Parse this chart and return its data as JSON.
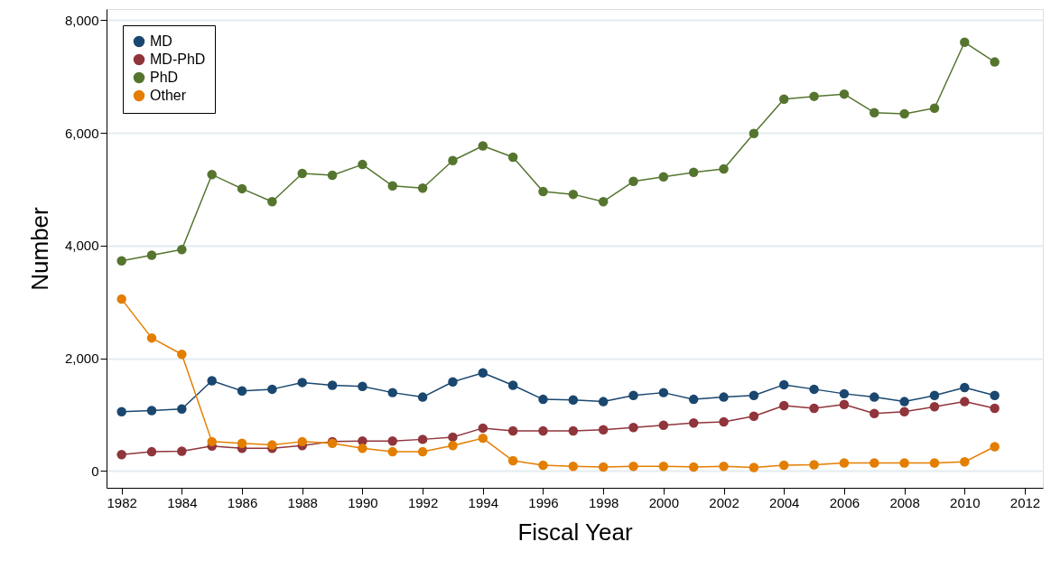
{
  "chart_data": {
    "type": "line",
    "xlabel": "Fiscal Year",
    "ylabel": "Number",
    "x": [
      1982,
      1983,
      1984,
      1985,
      1986,
      1987,
      1988,
      1989,
      1990,
      1991,
      1992,
      1993,
      1994,
      1995,
      1996,
      1997,
      1998,
      1999,
      2000,
      2001,
      2002,
      2003,
      2004,
      2005,
      2006,
      2007,
      2008,
      2009,
      2010,
      2011
    ],
    "series": [
      {
        "name": "MD",
        "color": "#1a476f",
        "values": [
          1050,
          1070,
          1100,
          1600,
          1420,
          1450,
          1570,
          1520,
          1500,
          1390,
          1310,
          1580,
          1740,
          1520,
          1270,
          1260,
          1230,
          1340,
          1390,
          1270,
          1310,
          1340,
          1530,
          1450,
          1370,
          1310,
          1230,
          1340,
          1480,
          1340
        ]
      },
      {
        "name": "MD-PhD",
        "color": "#90353b",
        "values": [
          290,
          340,
          350,
          440,
          400,
          400,
          450,
          520,
          530,
          530,
          560,
          600,
          760,
          710,
          710,
          710,
          730,
          770,
          810,
          850,
          870,
          970,
          1160,
          1110,
          1180,
          1020,
          1050,
          1140,
          1230,
          1110
        ]
      },
      {
        "name": "PhD",
        "color": "#55752f",
        "values": [
          3730,
          3830,
          3930,
          5260,
          5010,
          4780,
          5280,
          5250,
          5440,
          5060,
          5020,
          5510,
          5770,
          5570,
          4960,
          4910,
          4780,
          5140,
          5220,
          5300,
          5360,
          5990,
          6600,
          6650,
          6690,
          6360,
          6340,
          6440,
          7610,
          7260
        ]
      },
      {
        "name": "Other",
        "color": "#e37e00",
        "values": [
          3050,
          2360,
          2070,
          520,
          490,
          460,
          520,
          490,
          400,
          340,
          340,
          450,
          580,
          180,
          100,
          80,
          70,
          80,
          80,
          70,
          80,
          60,
          100,
          110,
          140,
          140,
          140,
          140,
          160,
          430
        ]
      }
    ],
    "xlim": [
      1981.5,
      2012.6
    ],
    "xticks": [
      1982,
      1984,
      1986,
      1988,
      1990,
      1992,
      1994,
      1996,
      1998,
      2000,
      2002,
      2004,
      2006,
      2008,
      2010,
      2012
    ],
    "ylim": [
      -300,
      8200
    ],
    "yticks": [
      {
        "value": 0,
        "label": "0"
      },
      {
        "value": 2000,
        "label": "2,000"
      },
      {
        "value": 4000,
        "label": "4,000"
      },
      {
        "value": 6000,
        "label": "6,000"
      },
      {
        "value": 8000,
        "label": "8,000"
      }
    ],
    "grid": "y",
    "legend": "top left",
    "marker": "circle",
    "line_style": "solid"
  }
}
